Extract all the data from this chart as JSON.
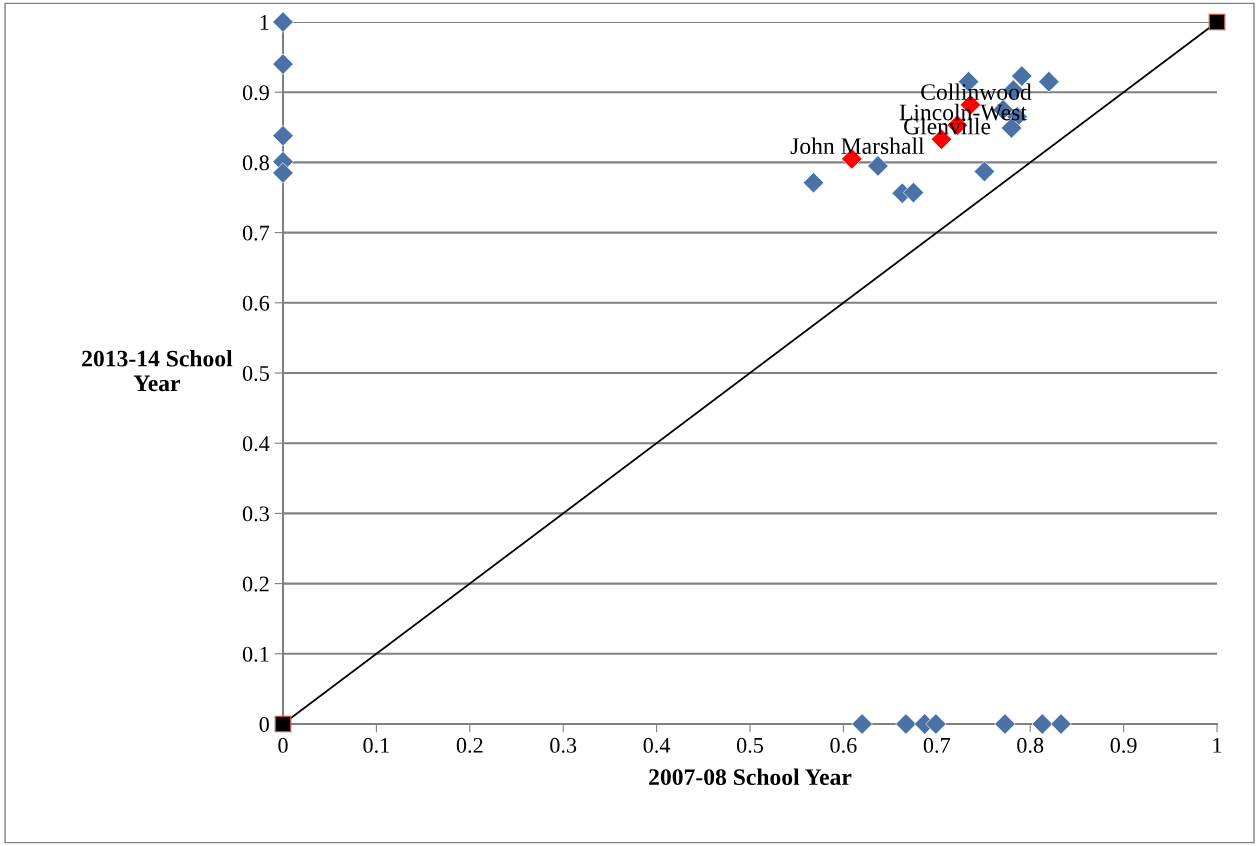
{
  "chart_data": {
    "type": "scatter",
    "xlabel": "2007-08 School Year",
    "ylabel": "2013-14 School Year",
    "xlim": [
      0,
      1
    ],
    "ylim": [
      0,
      1
    ],
    "xticks": [
      0,
      0.1,
      0.2,
      0.3,
      0.4,
      0.5,
      0.6,
      0.7,
      0.8,
      0.9,
      1
    ],
    "yticks": [
      0,
      0.1,
      0.2,
      0.3,
      0.4,
      0.5,
      0.6,
      0.7,
      0.8,
      0.9,
      1
    ],
    "grid": "y",
    "legend": false,
    "marker": "diamond",
    "series": [
      {
        "color": "#4a72a6",
        "x": [
          0,
          0,
          0,
          0,
          0,
          0.62,
          0.667,
          0.687,
          0.699,
          0.773,
          0.813,
          0.833,
          0.734,
          0.791,
          0.82,
          0.782,
          0.771,
          0.786,
          0.78,
          0.637,
          0.568,
          0.663,
          0.675,
          0.751
        ],
        "values": [
          1.0,
          0.94,
          0.838,
          0.801,
          0.785,
          0,
          0,
          0,
          0,
          0,
          0,
          0,
          0.915,
          0.923,
          0.915,
          0.903,
          0.875,
          0.865,
          0.849,
          0.795,
          0.771,
          0.756,
          0.757,
          0.787
        ]
      },
      {
        "color": "#ff0000",
        "x": [
          0.736,
          0.722,
          0.705,
          0.609
        ],
        "values": [
          0.882,
          0.853,
          0.833,
          0.805
        ]
      },
      {
        "type": "line",
        "color": "#000000",
        "marker": "square",
        "x": [
          0,
          1
        ],
        "values": [
          0,
          1
        ]
      }
    ],
    "annotations": [
      {
        "text": "Collinwood",
        "x": 0.736,
        "y": 0.882
      },
      {
        "text": "Lincoln-West",
        "x": 0.722,
        "y": 0.853
      },
      {
        "text": "Glenville",
        "x": 0.705,
        "y": 0.833
      },
      {
        "text": "John Marshall",
        "x": 0.609,
        "y": 0.805
      }
    ]
  }
}
